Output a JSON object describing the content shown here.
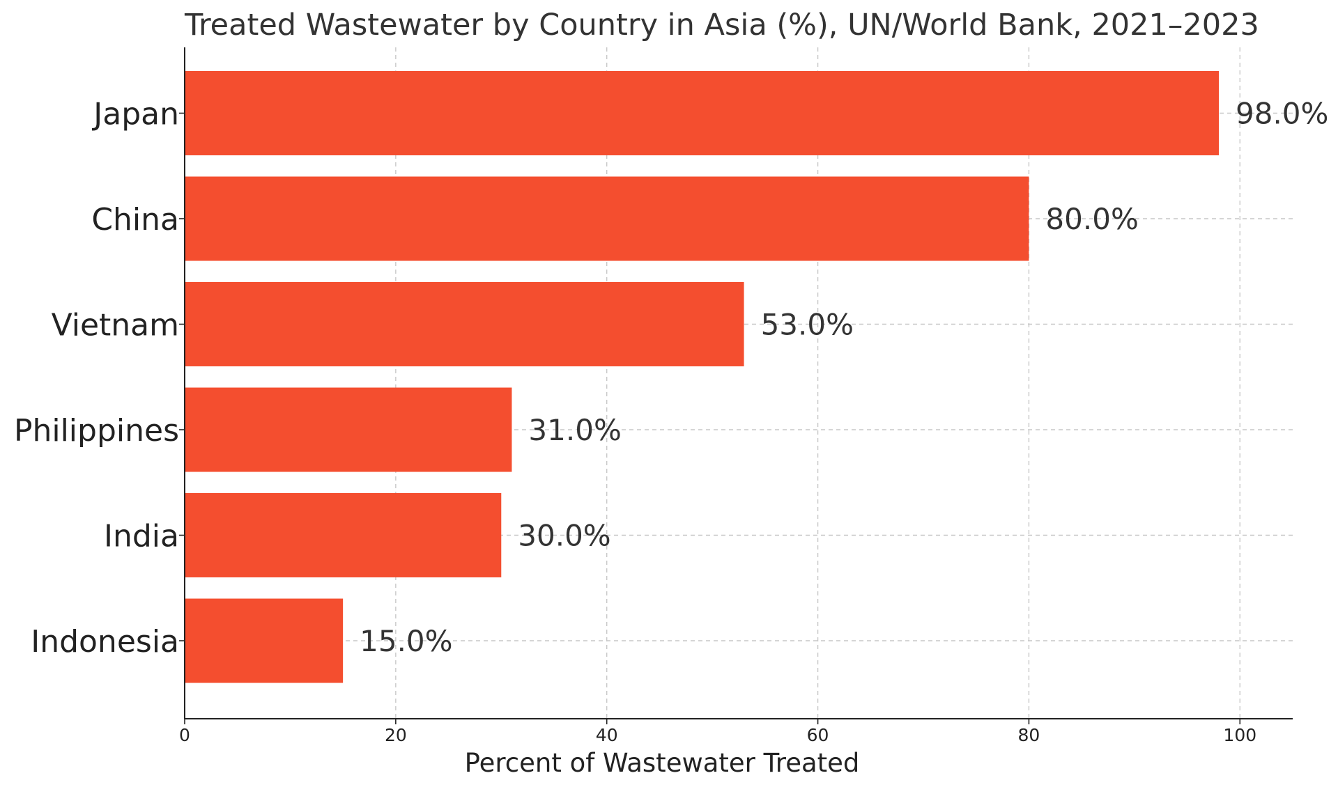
{
  "chart_data": {
    "type": "bar",
    "orientation": "horizontal",
    "title": "Treated Wastewater by Country in Asia (%), UN/World Bank, 2021–2023",
    "xlabel": "Percent of Wastewater Treated",
    "ylabel": "",
    "categories": [
      "Indonesia",
      "India",
      "Philippines",
      "Vietnam",
      "China",
      "Japan"
    ],
    "values": [
      15.0,
      30.0,
      31.0,
      53.0,
      80.0,
      98.0
    ],
    "value_labels": [
      "15.0%",
      "30.0%",
      "31.0%",
      "53.0%",
      "80.0%",
      "98.0%"
    ],
    "xlim": [
      0,
      105
    ],
    "xticks": [
      0,
      20,
      40,
      60,
      80,
      100
    ],
    "xtick_labels": [
      "0",
      "20",
      "40",
      "60",
      "80",
      "100"
    ],
    "grid": true,
    "grid_style": "dashed",
    "legend": false,
    "bar_color": "#f44e2f",
    "grid_color": "#c7c7c7",
    "axis_color": "#222222"
  }
}
